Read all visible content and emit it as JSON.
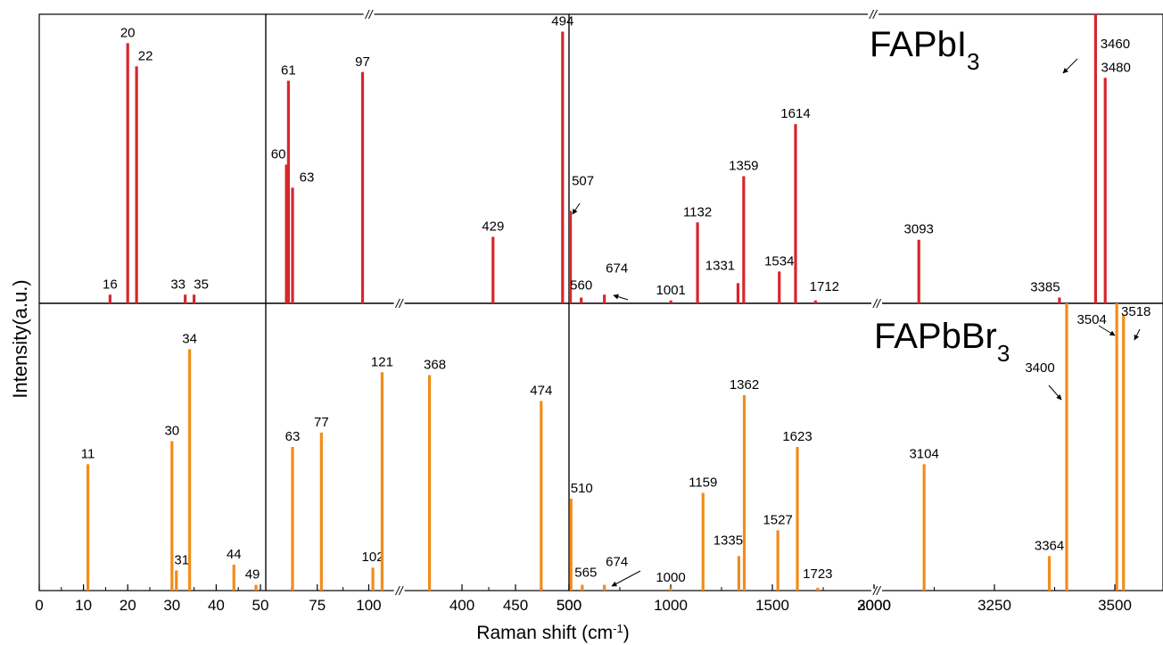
{
  "chart_data": {
    "type": "bar",
    "xlabel": "Raman shift (cm",
    "xlabel_sup": "-1",
    "xlabel_end": ")",
    "ylabel": "Intensity(a.u.)",
    "axis_break_glyph": "//",
    "colors": {
      "FAPbI3": "#d7262d",
      "FAPbBr3": "#f28c1a",
      "axis": "#000000"
    },
    "labels": {
      "top": {
        "main": "FAPbI",
        "sub": "3"
      },
      "bottom": {
        "main": "FAPbBr",
        "sub": "3"
      }
    },
    "panels": [
      {
        "name": "low",
        "xlim": [
          0,
          50
        ],
        "ticks": [
          {
            "v": 0,
            "t": "0"
          },
          {
            "v": 10,
            "t": "10"
          },
          {
            "v": 20,
            "t": "20"
          },
          {
            "v": 30,
            "t": "30"
          },
          {
            "v": 40,
            "t": "40"
          },
          {
            "v": 50,
            "t": "50"
          }
        ],
        "minor": [
          5,
          15,
          25,
          35,
          45
        ],
        "breaks": []
      },
      {
        "name": "mid",
        "xlim": [
          50,
          500
        ],
        "ticks": [
          {
            "v": 75,
            "t": "75"
          },
          {
            "v": 100,
            "t": "100"
          },
          {
            "v": 400,
            "t": "400"
          },
          {
            "v": 450,
            "t": "450"
          },
          {
            "v": 500,
            "t": "500"
          }
        ],
        "minor": [
          62.5,
          87.5,
          425,
          475
        ],
        "breaks": [
          {
            "pos": "top",
            "x": 0.34
          },
          {
            "pos": "middle",
            "x": 0.44
          },
          {
            "pos": "bottom",
            "x": 0.44
          }
        ]
      },
      {
        "name": "high",
        "xlim": [
          500,
          3600
        ],
        "ticks": [
          {
            "v": 500,
            "t": "500"
          },
          {
            "v": 1000,
            "t": "1000"
          },
          {
            "v": 1500,
            "t": "1500"
          },
          {
            "v": 2000,
            "t": "2000"
          },
          {
            "v": 3000,
            "t": "3000"
          },
          {
            "v": 3250,
            "t": "3250"
          },
          {
            "v": 3500,
            "t": "3500"
          }
        ],
        "minor": [
          750,
          1250,
          1750,
          3125,
          3375
        ],
        "breaks": [
          {
            "pos": "top",
            "x": 0.512
          },
          {
            "pos": "middle",
            "x": 0.518
          },
          {
            "pos": "bottom",
            "x": 0.518
          }
        ]
      }
    ],
    "series": [
      {
        "name": "FAPbI3",
        "row": "top",
        "peaks": [
          {
            "panel": "low",
            "x": 16,
            "y": 0.03,
            "label": "16"
          },
          {
            "panel": "low",
            "x": 20,
            "y": 0.9,
            "label": "20"
          },
          {
            "panel": "low",
            "x": 22,
            "y": 0.82,
            "label": "22"
          },
          {
            "panel": "low",
            "x": 33,
            "y": 0.03,
            "label": "33"
          },
          {
            "panel": "low",
            "x": 35,
            "y": 0.03,
            "label": "35"
          },
          {
            "panel": "mid",
            "x": 60,
            "y": 0.48,
            "label": "60"
          },
          {
            "panel": "mid",
            "x": 61,
            "y": 0.77,
            "label": "61"
          },
          {
            "panel": "mid",
            "x": 63,
            "y": 0.4,
            "label": "63"
          },
          {
            "panel": "mid",
            "x": 97,
            "y": 0.8,
            "label": "97"
          },
          {
            "panel": "mid",
            "x": 429,
            "y": 0.23,
            "label": "429"
          },
          {
            "panel": "mid",
            "x": 494,
            "y": 0.94,
            "label": "494"
          },
          {
            "panel": "high",
            "x": 507,
            "y": 0.32,
            "label": "507"
          },
          {
            "panel": "high",
            "x": 560,
            "y": 0.02,
            "label": "560"
          },
          {
            "panel": "high",
            "x": 674,
            "y": 0.03,
            "label": "674"
          },
          {
            "panel": "high",
            "x": 1001,
            "y": 0.01,
            "label": "1001"
          },
          {
            "panel": "high",
            "x": 1132,
            "y": 0.28,
            "label": "1132"
          },
          {
            "panel": "high",
            "x": 1331,
            "y": 0.07,
            "label": "1331"
          },
          {
            "panel": "high",
            "x": 1359,
            "y": 0.44,
            "label": "1359"
          },
          {
            "panel": "high",
            "x": 1534,
            "y": 0.11,
            "label": "1534"
          },
          {
            "panel": "high",
            "x": 1614,
            "y": 0.62,
            "label": "1614"
          },
          {
            "panel": "high",
            "x": 1712,
            "y": 0.01,
            "label": "1712"
          },
          {
            "panel": "high",
            "x": 3093,
            "y": 0.22,
            "label": "3093"
          },
          {
            "panel": "high",
            "x": 3385,
            "y": 0.02,
            "label": "3385"
          },
          {
            "panel": "high",
            "x": 3460,
            "y": 1.02,
            "label": "3460"
          },
          {
            "panel": "high",
            "x": 3480,
            "y": 0.78,
            "label": "3480"
          }
        ]
      },
      {
        "name": "FAPbBr3",
        "row": "bottom",
        "peaks": [
          {
            "panel": "low",
            "x": 11,
            "y": 0.44,
            "label": "11"
          },
          {
            "panel": "low",
            "x": 30,
            "y": 0.52,
            "label": "30"
          },
          {
            "panel": "low",
            "x": 31,
            "y": 0.07,
            "label": "31"
          },
          {
            "panel": "low",
            "x": 34,
            "y": 0.84,
            "label": "34"
          },
          {
            "panel": "low",
            "x": 44,
            "y": 0.09,
            "label": "44"
          },
          {
            "panel": "low",
            "x": 49,
            "y": 0.02,
            "label": "49"
          },
          {
            "panel": "mid",
            "x": 63,
            "y": 0.5,
            "label": "63"
          },
          {
            "panel": "mid",
            "x": 77,
            "y": 0.55,
            "label": "77"
          },
          {
            "panel": "mid",
            "x": 102,
            "y": 0.08,
            "label": "102"
          },
          {
            "panel": "mid",
            "x": 121,
            "y": 0.76,
            "label": "121"
          },
          {
            "panel": "mid",
            "x": 368,
            "y": 0.75,
            "label": "368"
          },
          {
            "panel": "mid",
            "x": 474,
            "y": 0.66,
            "label": "474"
          },
          {
            "panel": "high",
            "x": 510,
            "y": 0.32,
            "label": "510"
          },
          {
            "panel": "high",
            "x": 565,
            "y": 0.02,
            "label": "565"
          },
          {
            "panel": "high",
            "x": 674,
            "y": 0.02,
            "label": "674"
          },
          {
            "panel": "high",
            "x": 1000,
            "y": 0.01,
            "label": "1000"
          },
          {
            "panel": "high",
            "x": 1159,
            "y": 0.34,
            "label": "1159"
          },
          {
            "panel": "high",
            "x": 1335,
            "y": 0.12,
            "label": "1335"
          },
          {
            "panel": "high",
            "x": 1362,
            "y": 0.68,
            "label": "1362"
          },
          {
            "panel": "high",
            "x": 1527,
            "y": 0.21,
            "label": "1527"
          },
          {
            "panel": "high",
            "x": 1623,
            "y": 0.5,
            "label": "1623"
          },
          {
            "panel": "high",
            "x": 1723,
            "y": 0.01,
            "label": "1723"
          },
          {
            "panel": "high",
            "x": 3104,
            "y": 0.44,
            "label": "3104"
          },
          {
            "panel": "high",
            "x": 3364,
            "y": 0.12,
            "label": "3364"
          },
          {
            "panel": "high",
            "x": 3400,
            "y": 1.0,
            "label": "3400"
          },
          {
            "panel": "high",
            "x": 3504,
            "y": 1.0,
            "label": "3504"
          },
          {
            "panel": "high",
            "x": 3518,
            "y": 0.96,
            "label": "3518"
          }
        ]
      }
    ]
  }
}
